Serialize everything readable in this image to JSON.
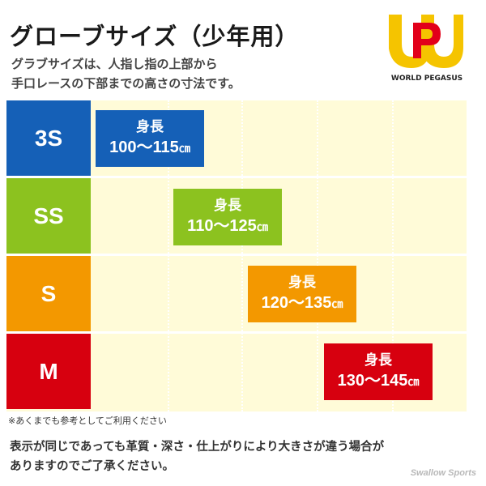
{
  "title": "グローブサイズ（少年用）",
  "description": {
    "line1": "グラブサイズは、人指し指の上部から",
    "line2": "手口レースの下部までの高さの寸法です。"
  },
  "brand": {
    "logo_text": "WORLD PEGASUS",
    "colors": {
      "yellow": "#f5c400",
      "red": "#e2001a"
    }
  },
  "rows": [
    {
      "size": "3S",
      "color": "#1560b7",
      "badge_label": "身長",
      "range": "100～115",
      "unit": "㎝",
      "column": 1
    },
    {
      "size": "SS",
      "color": "#8cc21f",
      "badge_label": "身長",
      "range": "110～125",
      "unit": "㎝",
      "column": 2
    },
    {
      "size": "S",
      "color": "#f39800",
      "badge_label": "身長",
      "range": "120～135",
      "unit": "㎝",
      "column": 3
    },
    {
      "size": "M",
      "color": "#d7000f",
      "badge_label": "身長",
      "range": "130～145",
      "unit": "㎝",
      "column": 4
    }
  ],
  "notes": {
    "small": "※あくまでも参考としてご利用ください",
    "line1": "表示が同じであっても革質・深さ・仕上がりにより大きさが違う場合が",
    "line2": "ありますのでご了承ください。"
  },
  "watermark": "Swallow Sports"
}
